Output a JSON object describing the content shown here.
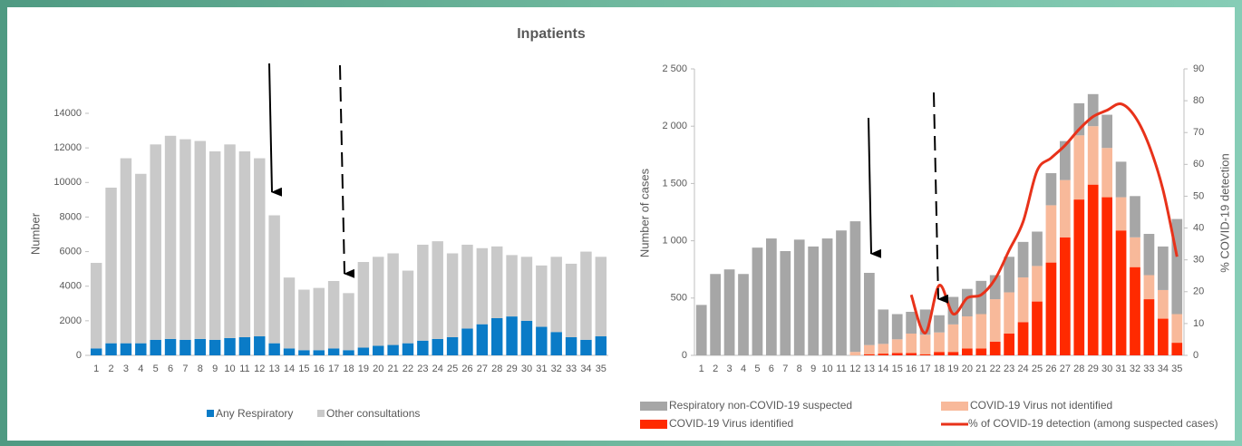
{
  "title": "Inpatients",
  "chart_data": [
    {
      "type": "bar",
      "stacked": true,
      "ylabel": "Number",
      "categories": [
        "1",
        "2",
        "3",
        "4",
        "5",
        "6",
        "7",
        "8",
        "9",
        "10",
        "11",
        "12",
        "13",
        "14",
        "15",
        "16",
        "17",
        "18",
        "19",
        "20",
        "21",
        "22",
        "23",
        "24",
        "25",
        "26",
        "27",
        "28",
        "29",
        "30",
        "31",
        "32",
        "33",
        "34",
        "35"
      ],
      "ylim": [
        0,
        14000
      ],
      "yticks": [
        0,
        2000,
        4000,
        6000,
        8000,
        10000,
        12000,
        14000
      ],
      "series": [
        {
          "name": "Any Respiratory",
          "color": "#0a7bc7",
          "values": [
            400,
            700,
            700,
            700,
            900,
            950,
            900,
            950,
            900,
            1000,
            1050,
            1100,
            700,
            400,
            300,
            300,
            400,
            300,
            450,
            550,
            600,
            700,
            850,
            950,
            1050,
            1550,
            1800,
            2150,
            2250,
            2000,
            1650,
            1350,
            1050,
            900,
            1100
          ]
        },
        {
          "name": "Other consultations",
          "color": "#c9c9c9",
          "values": [
            4950,
            9000,
            10700,
            9800,
            11300,
            11750,
            11600,
            11450,
            10900,
            11200,
            10750,
            10300,
            7400,
            4100,
            3500,
            3600,
            3900,
            3300,
            4950,
            5150,
            5300,
            4200,
            5550,
            5650,
            4850,
            4850,
            4400,
            4150,
            3550,
            3700,
            3550,
            4350,
            4250,
            5100,
            4600
          ]
        }
      ]
    },
    {
      "type": "bar",
      "stacked": true,
      "ylabel": "Number of cases",
      "y2label": "% COVID-19 detection",
      "categories": [
        "1",
        "2",
        "3",
        "4",
        "5",
        "6",
        "7",
        "8",
        "9",
        "10",
        "11",
        "12",
        "13",
        "14",
        "15",
        "16",
        "17",
        "18",
        "19",
        "20",
        "21",
        "22",
        "23",
        "24",
        "25",
        "26",
        "27",
        "28",
        "29",
        "30",
        "31",
        "32",
        "33",
        "34",
        "35"
      ],
      "ylim": [
        0,
        2500
      ],
      "yticks": [
        0,
        500,
        {
          "value": 1000,
          "label": "1 000"
        },
        {
          "value": 1500,
          "label": "1 500"
        },
        {
          "value": 2000,
          "label": "2 000"
        },
        {
          "value": 2500,
          "label": "2 500"
        }
      ],
      "y2lim": [
        0,
        90
      ],
      "y2ticks": [
        0,
        10,
        20,
        30,
        40,
        50,
        60,
        70,
        80,
        90
      ],
      "series": [
        {
          "name": "COVID-19 Virus identified",
          "color": "#ff2a00",
          "values": [
            0,
            0,
            0,
            0,
            0,
            0,
            0,
            0,
            0,
            0,
            0,
            0,
            10,
            15,
            20,
            20,
            10,
            30,
            30,
            60,
            60,
            120,
            190,
            290,
            470,
            810,
            1030,
            1360,
            1490,
            1380,
            1090,
            770,
            490,
            320,
            110
          ]
        },
        {
          "name": "COVID-19 Virus not identified",
          "color": "#f8b99a",
          "values": [
            0,
            0,
            0,
            0,
            0,
            0,
            0,
            0,
            0,
            0,
            0,
            30,
            80,
            85,
            120,
            170,
            170,
            170,
            240,
            280,
            300,
            370,
            360,
            390,
            310,
            500,
            500,
            560,
            510,
            430,
            290,
            260,
            210,
            250,
            250
          ]
        },
        {
          "name": "Respiratory non-COVID-19 suspected",
          "color": "#a6a6a6",
          "values": [
            440,
            710,
            750,
            710,
            940,
            1020,
            910,
            1010,
            950,
            1020,
            1090,
            1140,
            630,
            300,
            220,
            190,
            220,
            150,
            240,
            240,
            290,
            210,
            310,
            310,
            300,
            280,
            340,
            280,
            280,
            290,
            310,
            360,
            360,
            380,
            830
          ]
        },
        {
          "name": "% of COVID-19 detection (among suspected cases)",
          "color": "#e8321a",
          "type": "line",
          "axis": "y2",
          "values": [
            null,
            null,
            null,
            null,
            null,
            null,
            null,
            null,
            null,
            null,
            null,
            null,
            null,
            null,
            null,
            19,
            7,
            22,
            13,
            18,
            19,
            24,
            33,
            42,
            58,
            62,
            66,
            71,
            75,
            77,
            79,
            75,
            66,
            52,
            31
          ]
        }
      ]
    }
  ]
}
